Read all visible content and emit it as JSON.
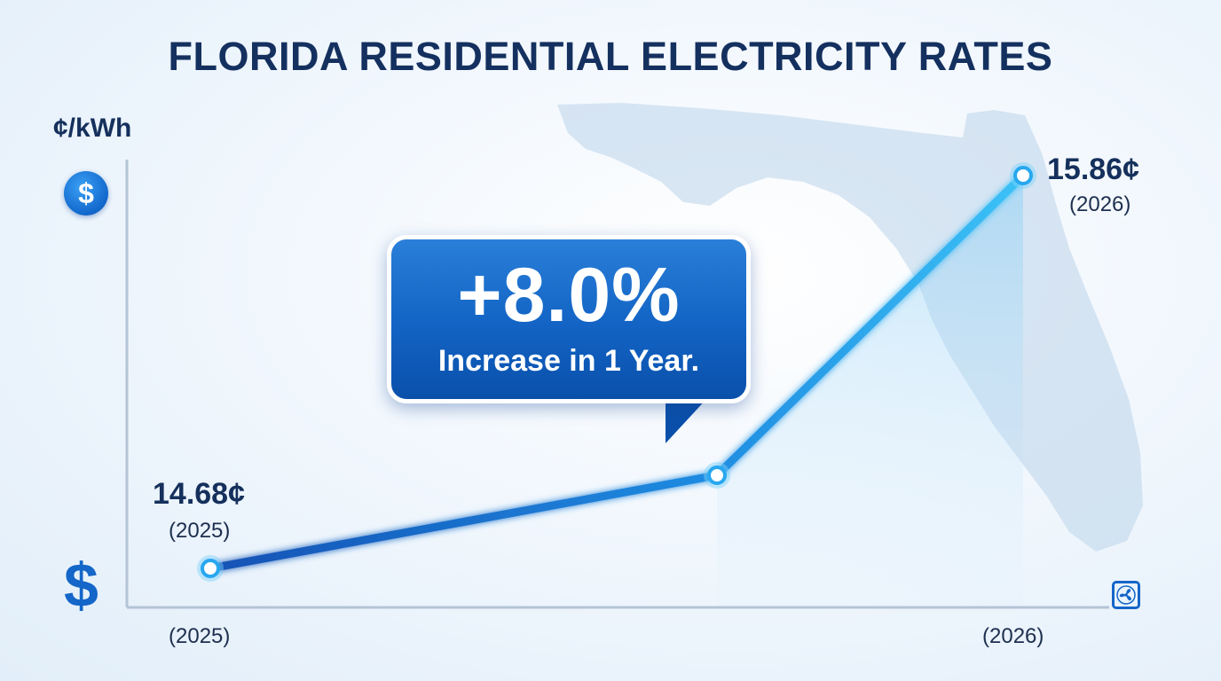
{
  "chart_data": {
    "type": "line",
    "title": "FLORIDA RESIDENTIAL ELECTRICITY RATES",
    "ylabel": "¢/kWh",
    "x_axis_labels": [
      "(2025)",
      "(2026)"
    ],
    "points": [
      {
        "value": 14.68,
        "label": "14.68¢",
        "year_label": "(2025)"
      },
      {
        "value": 15.86,
        "label": "15.86¢",
        "year_label": "(2026)"
      }
    ],
    "callout": {
      "headline": "+8.0%",
      "subtext": "Increase in 1 Year."
    },
    "grid": false,
    "legend": "none"
  },
  "icons": {
    "top_axis_icon": "dollar-coin-icon",
    "bottom_axis_icon": "dollar-sign-icon",
    "corner_icon": "fan-icon",
    "background": "florida-map-silhouette"
  },
  "icon_text": {
    "coin": "$",
    "dollar": "$"
  },
  "colors": {
    "title": "#14305f",
    "line_start": "#1455b8",
    "line_end": "#32b6f4",
    "callout": "#1263c4",
    "map": "#bcd3ea"
  }
}
